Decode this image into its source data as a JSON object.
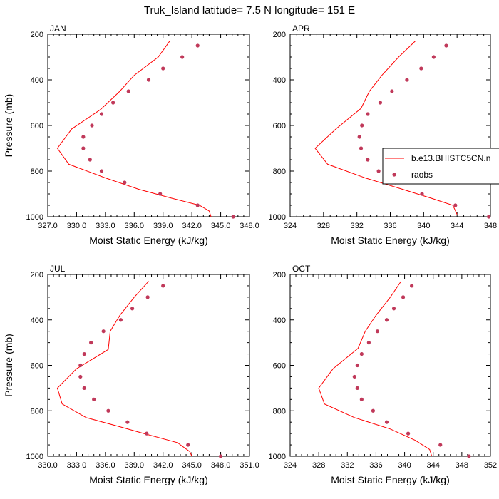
{
  "title": "Truk_Island  latitude= 7.5 N longitude= 151 E",
  "colors": {
    "model_line": "#ff0000",
    "obs_marker": "#c0395a",
    "axis": "#000000"
  },
  "legend": {
    "position": "right of APR panel",
    "entries": [
      {
        "label": "b.e13.BHISTC5CN.n",
        "style": "line"
      },
      {
        "label": "raobs",
        "style": "marker"
      }
    ]
  },
  "chart_data": [
    {
      "type": "line",
      "panel": "JAN",
      "xlabel": "Moist Static Energy (kJ/kg)",
      "ylabel": "Pressure (mb)",
      "xlim": [
        327.0,
        348.0
      ],
      "ylim": [
        1000,
        200
      ],
      "xticks": [
        "327.0",
        "330.0",
        "333.0",
        "336.0",
        "339.0",
        "342.0",
        "345.0",
        "348.0"
      ],
      "yticks": [
        "200",
        "400",
        "600",
        "800",
        "1000"
      ],
      "series": [
        {
          "name": "b.e13.BHISTC5CN.n",
          "points": [
            [
              339.7,
              230
            ],
            [
              338.5,
              300
            ],
            [
              336.0,
              380
            ],
            [
              334.5,
              450
            ],
            [
              332.5,
              530
            ],
            [
              329.5,
              615
            ],
            [
              328.0,
              700
            ],
            [
              329.2,
              770
            ],
            [
              333.0,
              830
            ],
            [
              336.5,
              880
            ],
            [
              340.0,
              920
            ],
            [
              342.8,
              950
            ],
            [
              343.8,
              975
            ],
            [
              344.0,
              1000
            ]
          ]
        },
        {
          "name": "raobs",
          "points": [
            [
              342.6,
              250
            ],
            [
              341.0,
              300
            ],
            [
              339.0,
              350
            ],
            [
              337.5,
              400
            ],
            [
              335.4,
              450
            ],
            [
              333.8,
              500
            ],
            [
              332.6,
              550
            ],
            [
              331.6,
              600
            ],
            [
              330.7,
              650
            ],
            [
              330.7,
              700
            ],
            [
              331.4,
              750
            ],
            [
              332.6,
              800
            ],
            [
              335.0,
              850
            ],
            [
              338.7,
              900
            ],
            [
              342.6,
              950
            ],
            [
              346.3,
              1000
            ]
          ]
        }
      ]
    },
    {
      "type": "line",
      "panel": "APR",
      "xlabel": "Moist Static Energy (kJ/kg)",
      "ylabel": "",
      "xlim": [
        324,
        348
      ],
      "ylim": [
        1000,
        200
      ],
      "xticks": [
        "324",
        "328",
        "332",
        "336",
        "340",
        "344",
        "348"
      ],
      "yticks": [
        "200",
        "400",
        "600",
        "800",
        "1000"
      ],
      "series": [
        {
          "name": "b.e13.BHISTC5CN.n",
          "points": [
            [
              339.0,
              230
            ],
            [
              337.0,
              300
            ],
            [
              335.0,
              380
            ],
            [
              333.5,
              450
            ],
            [
              332.5,
              525
            ],
            [
              329.5,
              615
            ],
            [
              327.0,
              700
            ],
            [
              328.5,
              770
            ],
            [
              333.0,
              830
            ],
            [
              337.5,
              880
            ],
            [
              341.0,
              920
            ],
            [
              343.5,
              950
            ],
            [
              344.0,
              990
            ]
          ]
        },
        {
          "name": "raobs",
          "points": [
            [
              342.7,
              250
            ],
            [
              341.2,
              300
            ],
            [
              339.7,
              350
            ],
            [
              338.0,
              400
            ],
            [
              336.2,
              450
            ],
            [
              334.8,
              500
            ],
            [
              333.3,
              550
            ],
            [
              332.6,
              600
            ],
            [
              332.3,
              650
            ],
            [
              332.5,
              700
            ],
            [
              333.3,
              750
            ],
            [
              334.6,
              800
            ],
            [
              336.6,
              850
            ],
            [
              339.8,
              900
            ],
            [
              343.8,
              950
            ],
            [
              347.8,
              1000
            ]
          ]
        }
      ]
    },
    {
      "type": "line",
      "panel": "JUL",
      "xlabel": "Moist Static Energy (kJ/kg)",
      "ylabel": "Pressure (mb)",
      "xlim": [
        330.0,
        351.0
      ],
      "ylim": [
        1000,
        200
      ],
      "xticks": [
        "330.0",
        "333.0",
        "336.0",
        "339.0",
        "342.0",
        "345.0",
        "348.0",
        "351.0"
      ],
      "yticks": [
        "200",
        "400",
        "600",
        "800",
        "1000"
      ],
      "series": [
        {
          "name": "b.e13.BHISTC5CN.n",
          "points": [
            [
              340.5,
              230
            ],
            [
              339.0,
              300
            ],
            [
              337.5,
              380
            ],
            [
              336.5,
              450
            ],
            [
              336.3,
              530
            ],
            [
              333.0,
              615
            ],
            [
              331.0,
              700
            ],
            [
              331.5,
              770
            ],
            [
              334.0,
              830
            ],
            [
              337.5,
              870
            ],
            [
              340.0,
              900
            ],
            [
              343.5,
              940
            ],
            [
              344.8,
              980
            ],
            [
              345.0,
              1000
            ]
          ]
        },
        {
          "name": "raobs",
          "points": [
            [
              342.0,
              250
            ],
            [
              340.4,
              300
            ],
            [
              338.8,
              350
            ],
            [
              337.6,
              400
            ],
            [
              335.8,
              450
            ],
            [
              334.5,
              500
            ],
            [
              333.8,
              550
            ],
            [
              333.4,
              600
            ],
            [
              333.4,
              650
            ],
            [
              333.8,
              700
            ],
            [
              334.8,
              750
            ],
            [
              336.3,
              800
            ],
            [
              338.3,
              850
            ],
            [
              340.3,
              900
            ],
            [
              344.6,
              950
            ],
            [
              348.0,
              1000
            ]
          ]
        }
      ]
    },
    {
      "type": "line",
      "panel": "OCT",
      "xlabel": "Moist Static Energy (kJ/kg)",
      "ylabel": "",
      "xlim": [
        324,
        352
      ],
      "ylim": [
        1000,
        200
      ],
      "xticks": [
        "324",
        "328",
        "332",
        "336",
        "340",
        "344",
        "348",
        "352"
      ],
      "yticks": [
        "200",
        "400",
        "600",
        "800",
        "1000"
      ],
      "series": [
        {
          "name": "b.e13.BHISTC5CN.n",
          "points": [
            [
              339.5,
              230
            ],
            [
              338.0,
              300
            ],
            [
              336.0,
              380
            ],
            [
              334.5,
              450
            ],
            [
              333.5,
              525
            ],
            [
              330.0,
              615
            ],
            [
              328.0,
              700
            ],
            [
              328.8,
              770
            ],
            [
              333.0,
              830
            ],
            [
              338.0,
              880
            ],
            [
              341.5,
              930
            ],
            [
              343.5,
              970
            ],
            [
              343.8,
              1000
            ]
          ]
        },
        {
          "name": "raobs",
          "points": [
            [
              341.0,
              250
            ],
            [
              339.8,
              300
            ],
            [
              338.5,
              350
            ],
            [
              337.5,
              400
            ],
            [
              336.2,
              450
            ],
            [
              335.0,
              500
            ],
            [
              334.0,
              550
            ],
            [
              333.4,
              600
            ],
            [
              333.0,
              650
            ],
            [
              333.4,
              700
            ],
            [
              334.0,
              750
            ],
            [
              335.6,
              800
            ],
            [
              337.5,
              850
            ],
            [
              340.5,
              900
            ],
            [
              345.0,
              950
            ],
            [
              349.0,
              1000
            ]
          ]
        }
      ]
    }
  ]
}
